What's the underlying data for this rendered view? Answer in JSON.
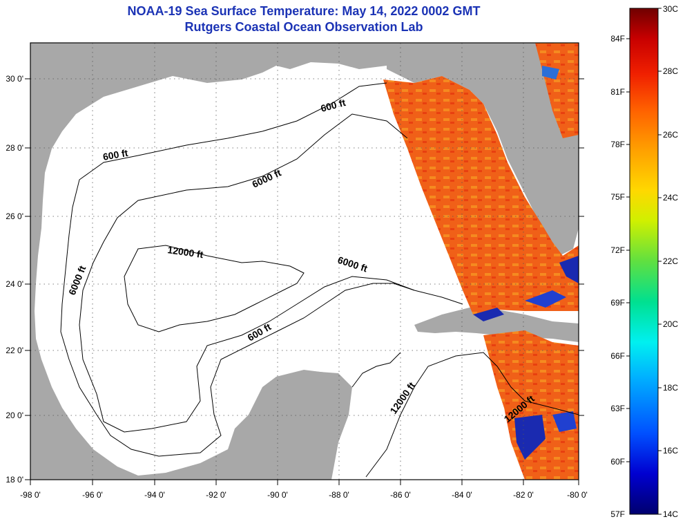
{
  "title": {
    "line1": "NOAA-19 Sea Surface Temperature:  May 14, 2022 0002 GMT",
    "line2": "Rutgers Coastal Ocean Observation Lab"
  },
  "map": {
    "lon_ticks": [
      "-98 0'",
      "-96 0'",
      "-94 0'",
      "-92 0'",
      "-90 0'",
      "-88 0'",
      "-86 0'",
      "-84 0'",
      "-82 0'",
      "-80 0'"
    ],
    "lat_ticks": [
      "30 0'",
      "28 0'",
      "26 0'",
      "24 0'",
      "22 0'",
      "20 0'",
      "18 0'"
    ],
    "contour_labels": {
      "c600_north": "600 ft",
      "c600_west": "600 ft",
      "c6000_north": "6000 ft",
      "c6000_west": "6000 ft",
      "c6000_east": "6000 ft",
      "c12000_center": "12000 ft",
      "c600_south": "600 ft",
      "c12000_yucatan": "12000 ft",
      "c12000_caribbean": "12000 ft"
    },
    "colors": {
      "land": "#a8a8a8",
      "water_nodata": "#ffffff"
    }
  },
  "colorbar": {
    "fahrenheit": [
      "84F",
      "81F",
      "78F",
      "75F",
      "72F",
      "69F",
      "66F",
      "63F",
      "60F",
      "57F"
    ],
    "celsius": [
      "30C",
      "28C",
      "26C",
      "24C",
      "22C",
      "20C",
      "18C",
      "16C",
      "14C"
    ],
    "colors_low_to_high": [
      "#00006e",
      "#0000d0",
      "#0050ff",
      "#00b0ff",
      "#00f0f0",
      "#00e090",
      "#60e040",
      "#d0f000",
      "#ffd800",
      "#ffa000",
      "#ff6000",
      "#f02000",
      "#c80000",
      "#700000"
    ]
  }
}
